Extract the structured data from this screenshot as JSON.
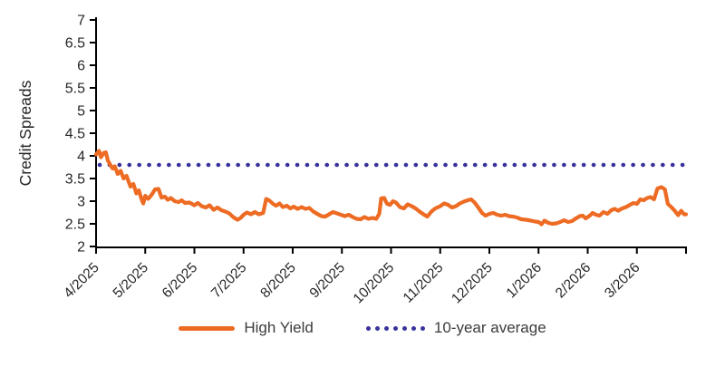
{
  "colors": {
    "high_yield": "#ED6B23",
    "ten_year_avg": "#38329B",
    "axis": "#000000",
    "tick_text": "#262626",
    "legend_text": "#3c3c3c",
    "background": "#ffffff"
  },
  "legend": {
    "high_yield_label": "High Yield",
    "ten_year_avg_label": "10-year average"
  },
  "chart_data": {
    "type": "line",
    "title": "",
    "xlabel": "",
    "ylabel": "Credit Spreads",
    "ylim": [
      2,
      7
    ],
    "ytick_step": 0.5,
    "grid": false,
    "legend_position": "bottom",
    "x_tick_labels": [
      "4/2025",
      "5/2025",
      "6/2025",
      "7/2025",
      "8/2025",
      "9/2025",
      "10/2025",
      "11/2025",
      "12/2025",
      "1/2026",
      "2/2026",
      "3/2026"
    ],
    "x_range_months": [
      0,
      12
    ],
    "series": [
      {
        "name": "High Yield",
        "style": "solid",
        "color": "#ED6B23",
        "points": [
          [
            0.0,
            4.03
          ],
          [
            0.06,
            4.11
          ],
          [
            0.1,
            3.97
          ],
          [
            0.15,
            4.06
          ],
          [
            0.2,
            4.08
          ],
          [
            0.24,
            3.9
          ],
          [
            0.3,
            3.78
          ],
          [
            0.34,
            3.72
          ],
          [
            0.38,
            3.77
          ],
          [
            0.44,
            3.6
          ],
          [
            0.5,
            3.67
          ],
          [
            0.56,
            3.5
          ],
          [
            0.62,
            3.56
          ],
          [
            0.7,
            3.32
          ],
          [
            0.76,
            3.38
          ],
          [
            0.82,
            3.17
          ],
          [
            0.87,
            3.24
          ],
          [
            0.92,
            3.06
          ],
          [
            0.96,
            2.95
          ],
          [
            1.0,
            3.12
          ],
          [
            1.06,
            3.05
          ],
          [
            1.13,
            3.14
          ],
          [
            1.2,
            3.26
          ],
          [
            1.27,
            3.27
          ],
          [
            1.33,
            3.08
          ],
          [
            1.4,
            3.1
          ],
          [
            1.46,
            3.03
          ],
          [
            1.52,
            3.07
          ],
          [
            1.6,
            3.0
          ],
          [
            1.68,
            2.98
          ],
          [
            1.74,
            3.02
          ],
          [
            1.81,
            2.96
          ],
          [
            1.9,
            2.97
          ],
          [
            2.0,
            2.91
          ],
          [
            2.07,
            2.96
          ],
          [
            2.15,
            2.89
          ],
          [
            2.23,
            2.86
          ],
          [
            2.31,
            2.91
          ],
          [
            2.39,
            2.81
          ],
          [
            2.47,
            2.86
          ],
          [
            2.55,
            2.8
          ],
          [
            2.63,
            2.77
          ],
          [
            2.71,
            2.73
          ],
          [
            2.8,
            2.64
          ],
          [
            2.88,
            2.59
          ],
          [
            2.94,
            2.63
          ],
          [
            3.0,
            2.7
          ],
          [
            3.07,
            2.75
          ],
          [
            3.15,
            2.71
          ],
          [
            3.23,
            2.76
          ],
          [
            3.31,
            2.71
          ],
          [
            3.4,
            2.74
          ],
          [
            3.46,
            3.05
          ],
          [
            3.53,
            3.01
          ],
          [
            3.6,
            2.94
          ],
          [
            3.66,
            2.9
          ],
          [
            3.73,
            2.95
          ],
          [
            3.8,
            2.87
          ],
          [
            3.88,
            2.9
          ],
          [
            3.95,
            2.84
          ],
          [
            4.02,
            2.88
          ],
          [
            4.1,
            2.83
          ],
          [
            4.18,
            2.87
          ],
          [
            4.26,
            2.83
          ],
          [
            4.34,
            2.85
          ],
          [
            4.42,
            2.77
          ],
          [
            4.5,
            2.72
          ],
          [
            4.58,
            2.67
          ],
          [
            4.66,
            2.66
          ],
          [
            4.74,
            2.71
          ],
          [
            4.82,
            2.76
          ],
          [
            4.9,
            2.73
          ],
          [
            4.98,
            2.7
          ],
          [
            5.06,
            2.67
          ],
          [
            5.14,
            2.7
          ],
          [
            5.22,
            2.65
          ],
          [
            5.3,
            2.61
          ],
          [
            5.38,
            2.6
          ],
          [
            5.46,
            2.65
          ],
          [
            5.54,
            2.61
          ],
          [
            5.62,
            2.63
          ],
          [
            5.7,
            2.61
          ],
          [
            5.76,
            2.72
          ],
          [
            5.8,
            3.06
          ],
          [
            5.86,
            3.07
          ],
          [
            5.92,
            2.94
          ],
          [
            5.98,
            2.92
          ],
          [
            6.04,
            3.0
          ],
          [
            6.1,
            2.97
          ],
          [
            6.18,
            2.87
          ],
          [
            6.26,
            2.84
          ],
          [
            6.34,
            2.93
          ],
          [
            6.42,
            2.89
          ],
          [
            6.5,
            2.84
          ],
          [
            6.58,
            2.77
          ],
          [
            6.66,
            2.71
          ],
          [
            6.74,
            2.66
          ],
          [
            6.82,
            2.77
          ],
          [
            6.9,
            2.84
          ],
          [
            7.0,
            2.89
          ],
          [
            7.08,
            2.95
          ],
          [
            7.16,
            2.92
          ],
          [
            7.24,
            2.86
          ],
          [
            7.32,
            2.89
          ],
          [
            7.4,
            2.95
          ],
          [
            7.48,
            2.99
          ],
          [
            7.56,
            3.02
          ],
          [
            7.63,
            3.04
          ],
          [
            7.7,
            2.97
          ],
          [
            7.78,
            2.85
          ],
          [
            7.85,
            2.74
          ],
          [
            7.92,
            2.68
          ],
          [
            8.0,
            2.72
          ],
          [
            8.08,
            2.74
          ],
          [
            8.16,
            2.7
          ],
          [
            8.24,
            2.68
          ],
          [
            8.32,
            2.7
          ],
          [
            8.4,
            2.67
          ],
          [
            8.48,
            2.66
          ],
          [
            8.56,
            2.64
          ],
          [
            8.65,
            2.6
          ],
          [
            8.75,
            2.59
          ],
          [
            8.85,
            2.57
          ],
          [
            8.93,
            2.55
          ],
          [
            9.0,
            2.54
          ],
          [
            9.06,
            2.49
          ],
          [
            9.12,
            2.57
          ],
          [
            9.2,
            2.52
          ],
          [
            9.28,
            2.5
          ],
          [
            9.36,
            2.51
          ],
          [
            9.44,
            2.54
          ],
          [
            9.52,
            2.58
          ],
          [
            9.6,
            2.54
          ],
          [
            9.68,
            2.56
          ],
          [
            9.76,
            2.62
          ],
          [
            9.84,
            2.67
          ],
          [
            9.9,
            2.68
          ],
          [
            9.96,
            2.62
          ],
          [
            10.04,
            2.68
          ],
          [
            10.1,
            2.74
          ],
          [
            10.17,
            2.7
          ],
          [
            10.24,
            2.68
          ],
          [
            10.32,
            2.76
          ],
          [
            10.4,
            2.72
          ],
          [
            10.48,
            2.8
          ],
          [
            10.55,
            2.83
          ],
          [
            10.62,
            2.79
          ],
          [
            10.7,
            2.84
          ],
          [
            10.78,
            2.87
          ],
          [
            10.86,
            2.92
          ],
          [
            10.93,
            2.96
          ],
          [
            11.0,
            2.94
          ],
          [
            11.07,
            3.04
          ],
          [
            11.14,
            3.02
          ],
          [
            11.21,
            3.07
          ],
          [
            11.28,
            3.09
          ],
          [
            11.35,
            3.04
          ],
          [
            11.42,
            3.28
          ],
          [
            11.5,
            3.31
          ],
          [
            11.57,
            3.26
          ],
          [
            11.63,
            2.94
          ],
          [
            11.7,
            2.87
          ],
          [
            11.77,
            2.79
          ],
          [
            11.84,
            2.69
          ],
          [
            11.9,
            2.79
          ],
          [
            11.96,
            2.71
          ],
          [
            12.0,
            2.71
          ]
        ]
      },
      {
        "name": "10-year average",
        "style": "dotted",
        "color": "#38329B",
        "value": 3.8,
        "points": [
          [
            0,
            3.8
          ],
          [
            12,
            3.8
          ]
        ]
      }
    ]
  }
}
